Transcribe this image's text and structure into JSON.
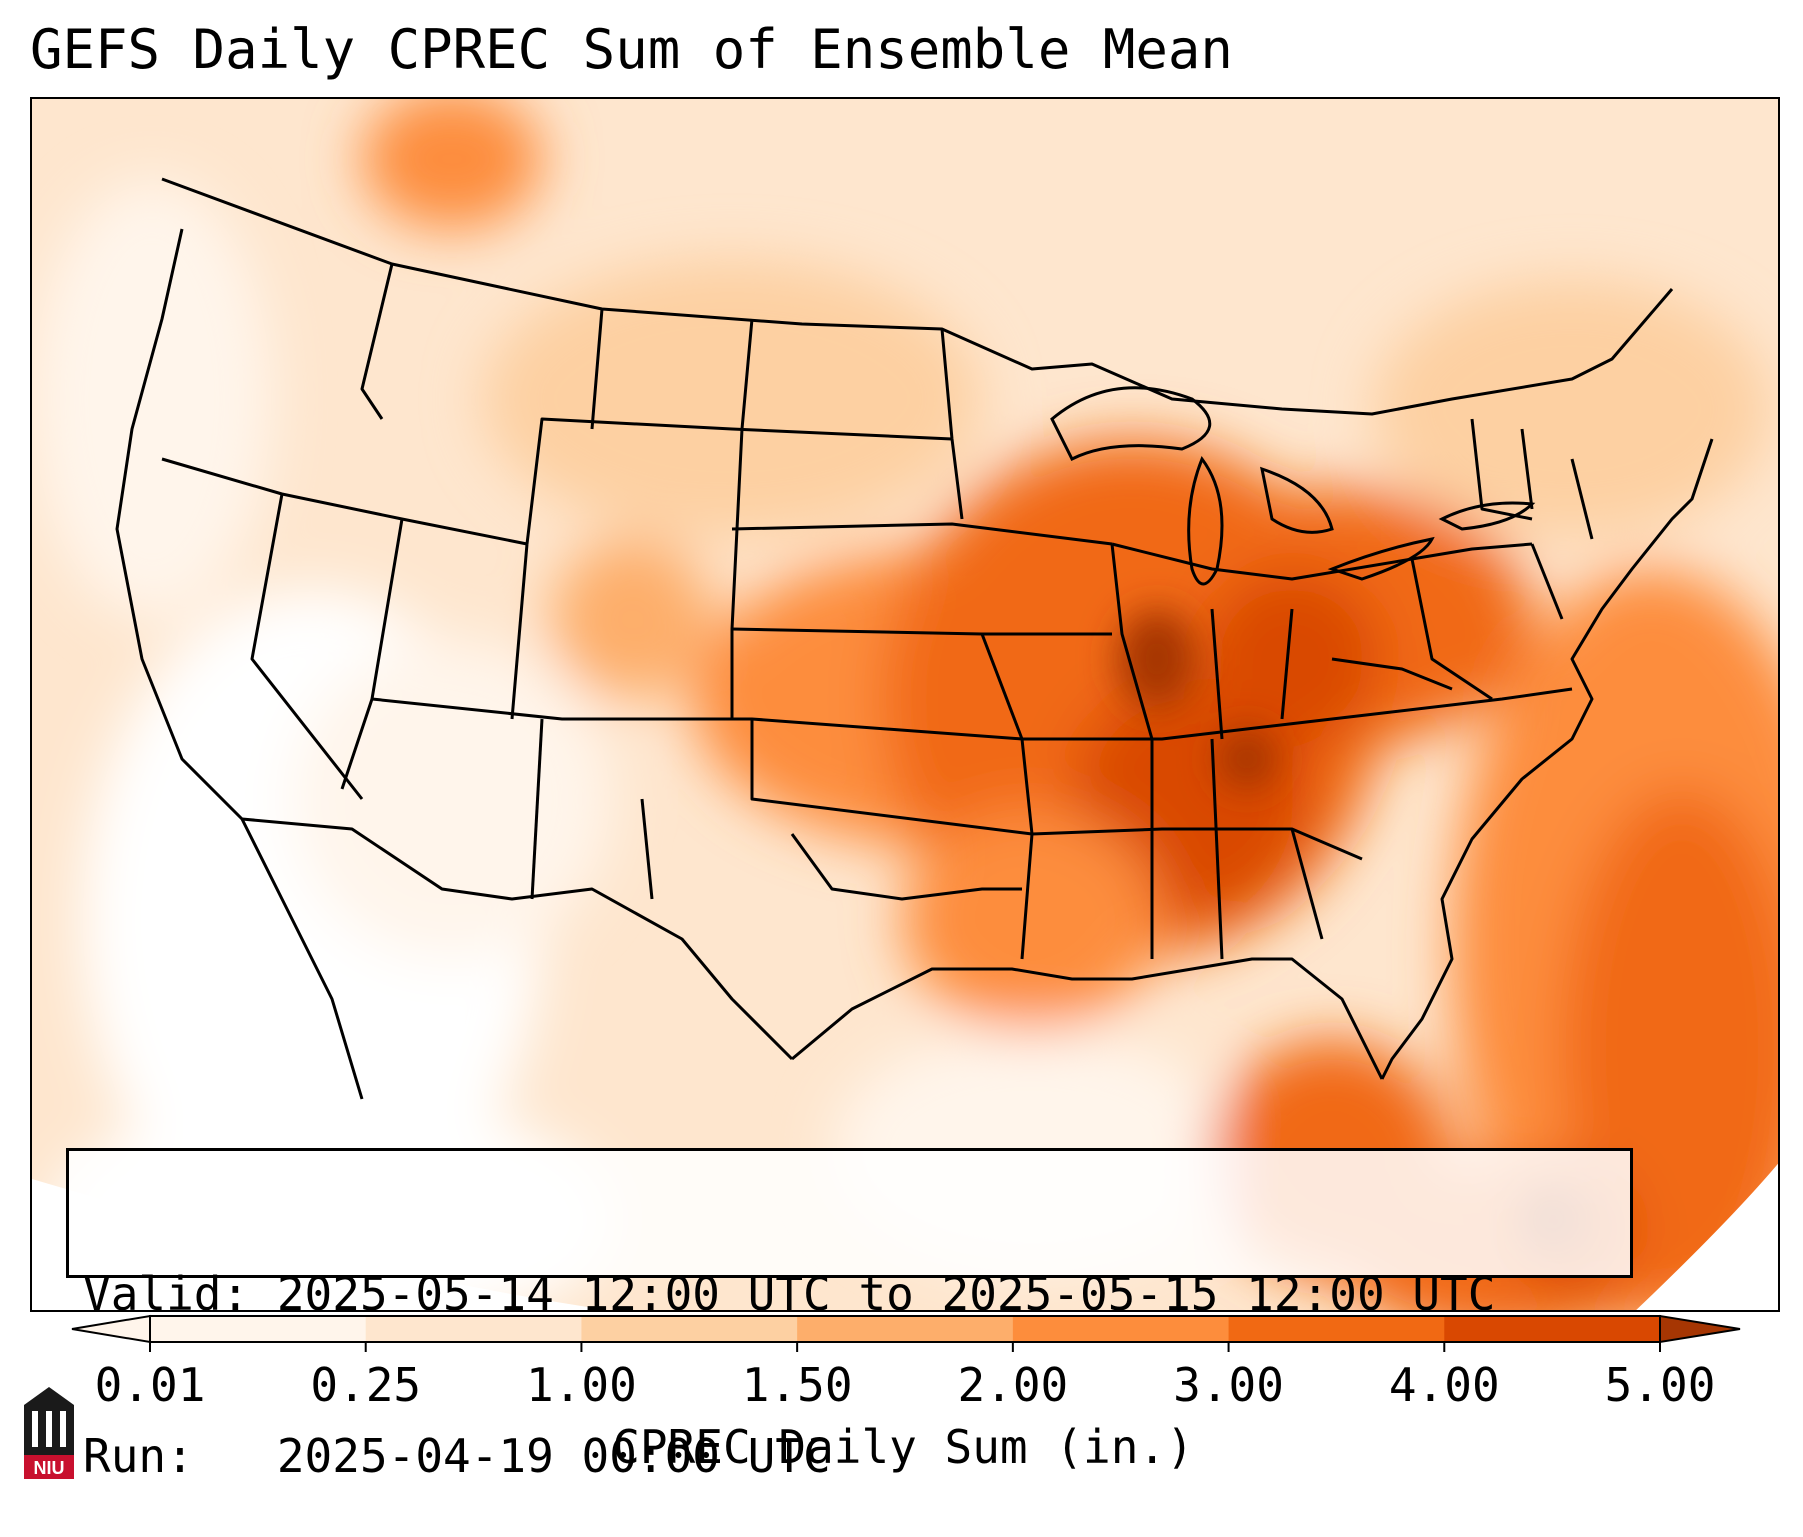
{
  "title": "GEFS Daily CPREC Sum of Ensemble Mean",
  "info": {
    "valid_line": "Valid: 2025-05-14 12:00 UTC to 2025-05-15 12:00 UTC",
    "run_line": "Run:   2025-04-19 00:00 UTC"
  },
  "colorbar": {
    "label": "CPREC Daily Sum (in.)",
    "ticks": [
      "0.01",
      "0.25",
      "1.00",
      "1.50",
      "2.00",
      "3.00",
      "4.00",
      "5.00"
    ],
    "colors": [
      "#fff5eb",
      "#fee6ce",
      "#fdd0a2",
      "#fdae6b",
      "#fd8d3c",
      "#f16913",
      "#d94801",
      "#a63603"
    ]
  },
  "logo": {
    "text": "NIU",
    "brand_color": "#c8102e"
  },
  "map": {
    "projection": "lambert-conformal",
    "region": "CONUS"
  }
}
